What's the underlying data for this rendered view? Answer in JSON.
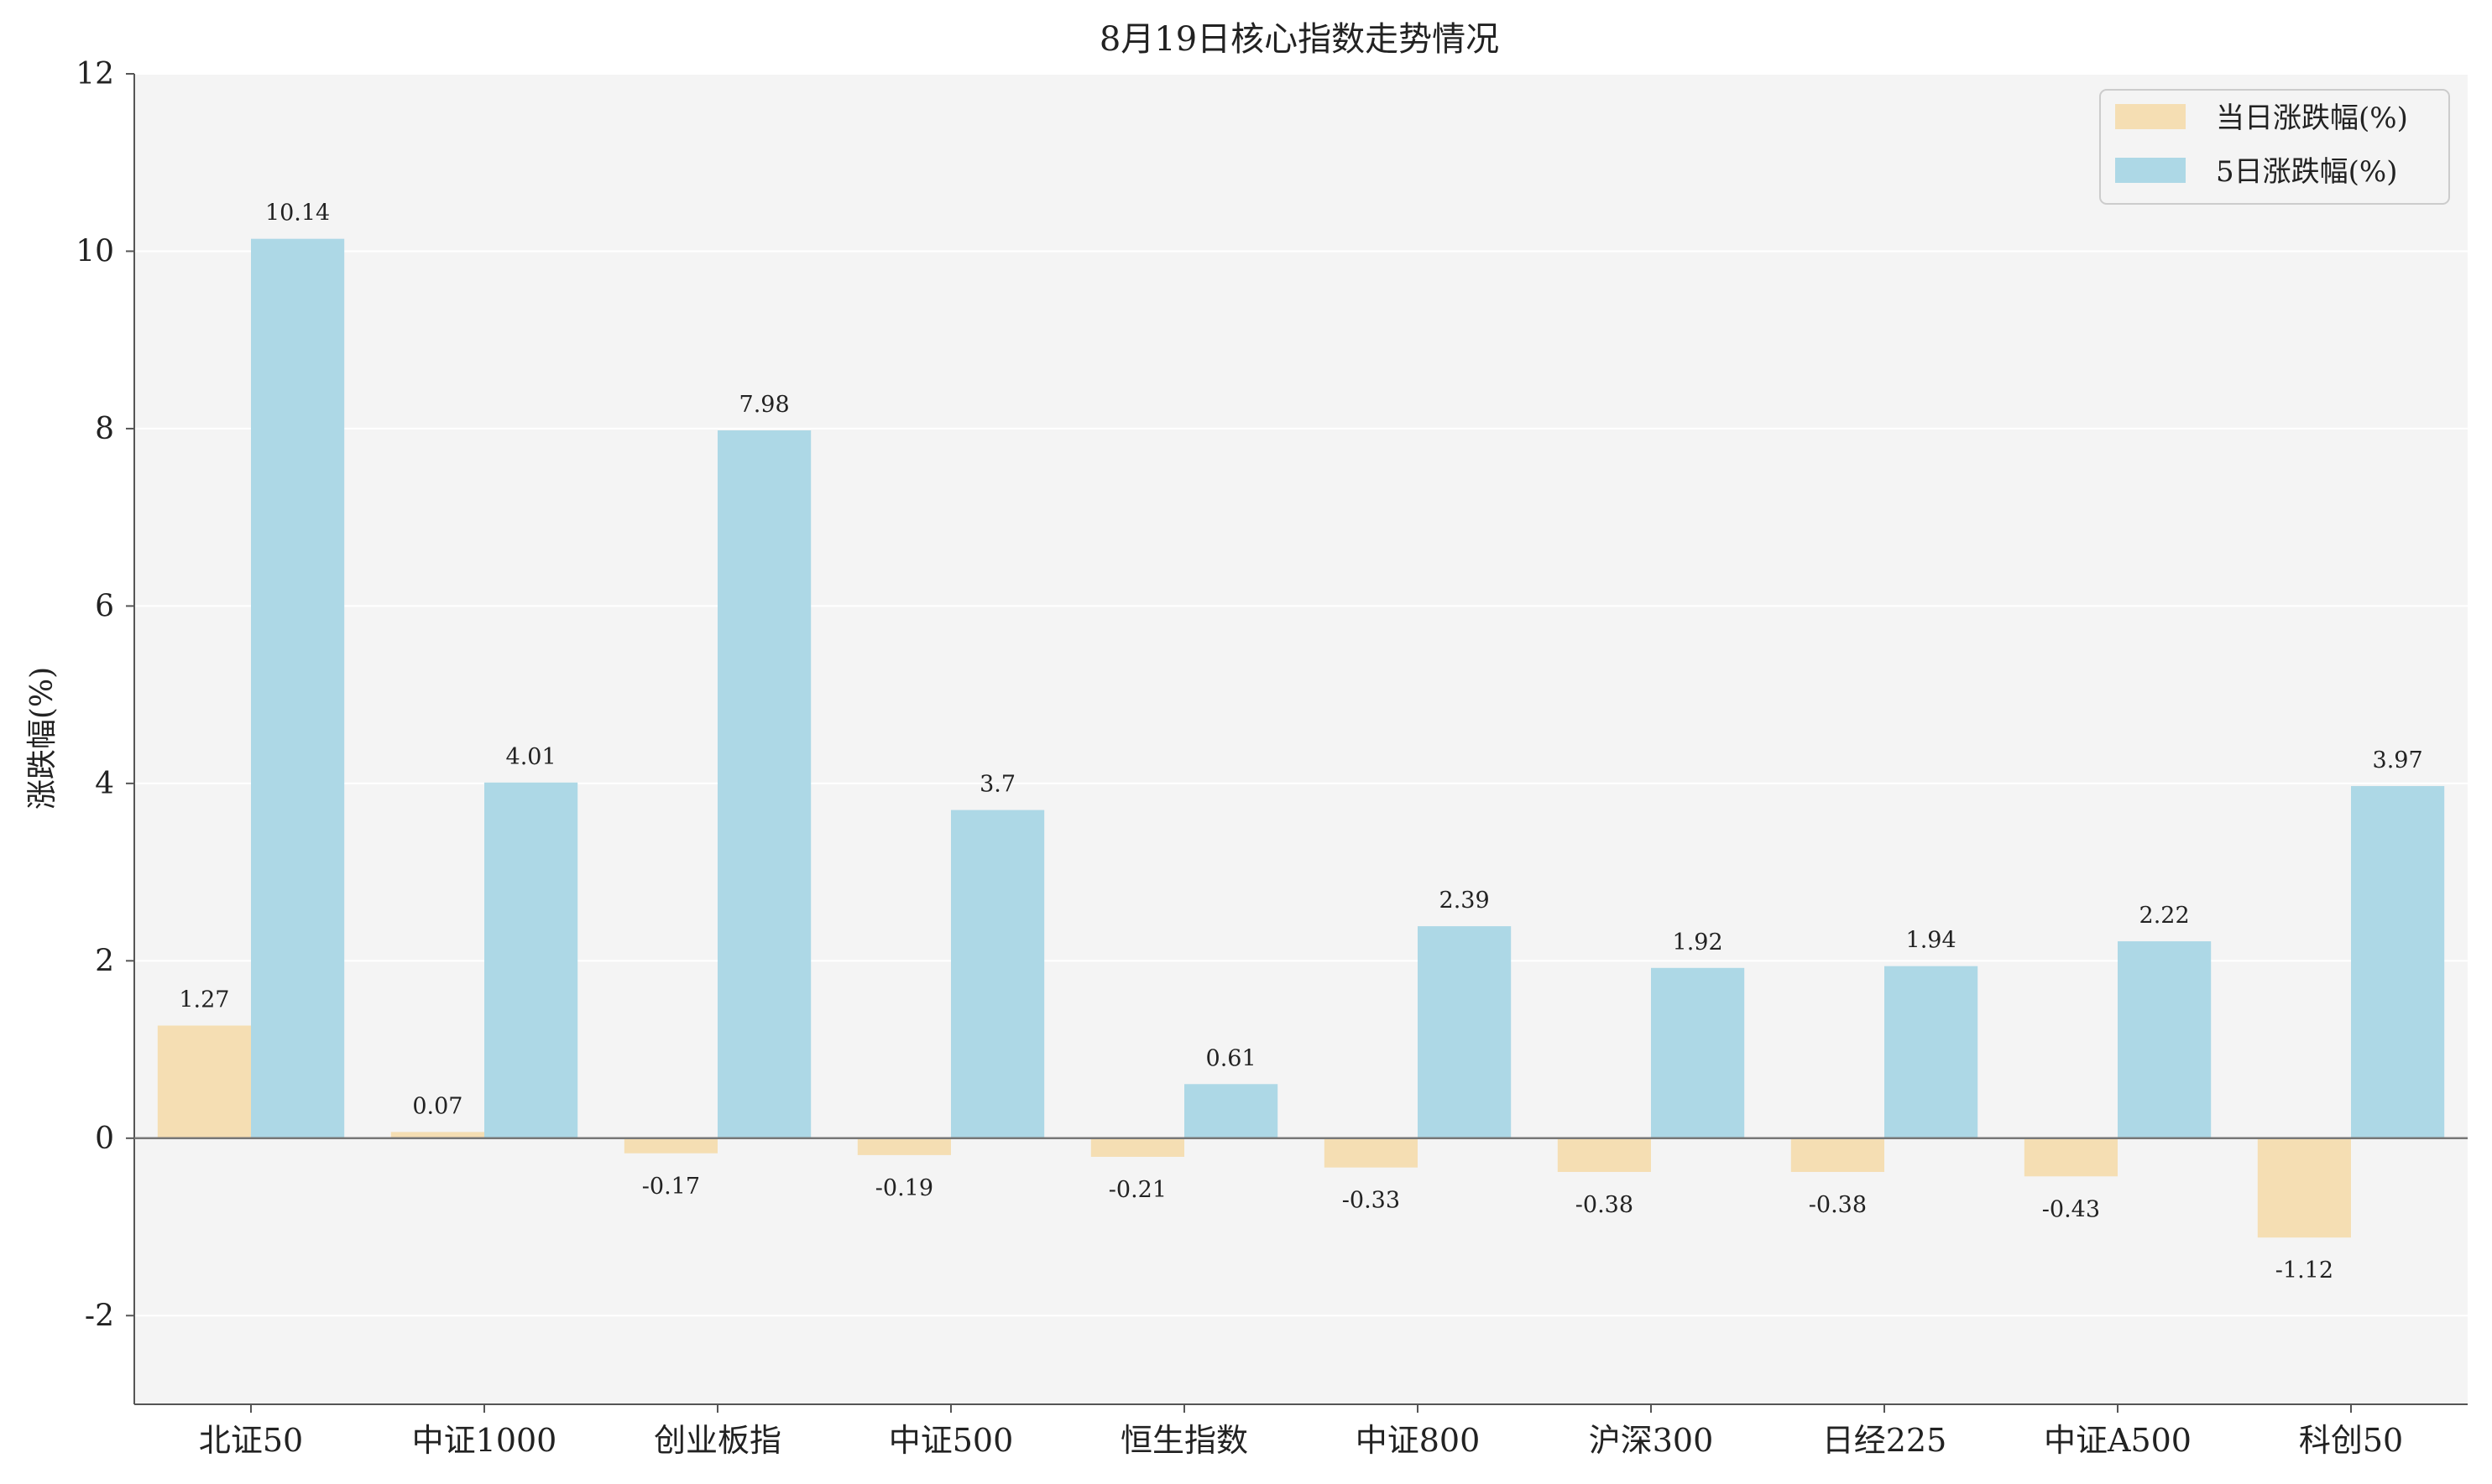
{
  "chart_data": {
    "type": "bar",
    "title": "8月19日核心指数走势情况",
    "xlabel": "",
    "ylabel": "涨跌幅(%)",
    "ylim": [
      -3,
      12
    ],
    "yticks": [
      -2,
      0,
      2,
      4,
      6,
      8,
      10,
      12
    ],
    "grid": "horizontal",
    "legend_position": "top-right",
    "categories": [
      "北证50",
      "中证1000",
      "创业板指",
      "中证500",
      "恒生指数",
      "中证800",
      "沪深300",
      "日经225",
      "中证A500",
      "科创50"
    ],
    "series": [
      {
        "name": "当日涨跌幅(%)",
        "color": "#f5deb3",
        "values": [
          1.27,
          0.07,
          -0.17,
          -0.19,
          -0.21,
          -0.33,
          -0.38,
          -0.38,
          -0.43,
          -1.12
        ]
      },
      {
        "name": "5日涨跌幅(%)",
        "color": "#add8e6",
        "values": [
          10.14,
          4.01,
          7.98,
          3.7,
          0.61,
          2.39,
          1.92,
          1.94,
          2.22,
          3.97
        ]
      }
    ]
  }
}
